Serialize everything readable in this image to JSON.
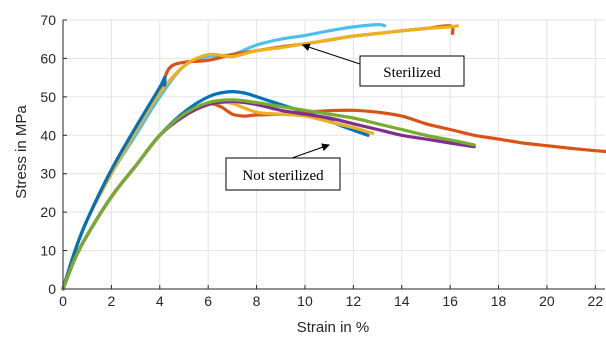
{
  "chart_data": {
    "type": "line",
    "title": "",
    "xlabel": "Strain in %",
    "ylabel": "Stress in MPa",
    "xlim": [
      0,
      22.4
    ],
    "ylim": [
      0,
      70
    ],
    "xticks": [
      0,
      2,
      4,
      6,
      8,
      10,
      12,
      14,
      16,
      18,
      20,
      22
    ],
    "yticks": [
      0,
      10,
      20,
      30,
      40,
      50,
      60,
      70
    ],
    "grid": true,
    "legend": "none",
    "annotations": [
      {
        "text": "Sterilized",
        "arrow_to": [
          9.9,
          63.5
        ]
      },
      {
        "text": "Not sterilized",
        "arrow_to": [
          11.0,
          37.5
        ]
      }
    ],
    "series": [
      {
        "group": "sterilized",
        "color": "#4DBEEE",
        "x": [
          0,
          0.5,
          1,
          2,
          3,
          4,
          5,
          6,
          7,
          8,
          9,
          10,
          11,
          12,
          13,
          13.3
        ],
        "y": [
          0,
          10,
          18,
          30,
          40,
          50,
          58,
          60.5,
          61,
          63.5,
          65,
          66,
          67.2,
          68.2,
          68.8,
          68.5
        ]
      },
      {
        "group": "sterilized",
        "color": "#D95319",
        "x": [
          0,
          0.5,
          1,
          2,
          3,
          4,
          4.4,
          5,
          6,
          7,
          8,
          9,
          10,
          11,
          12,
          13,
          14,
          15,
          16,
          16.1
        ],
        "y": [
          0,
          10,
          18,
          31,
          42,
          52,
          57.5,
          59,
          59.5,
          61,
          62,
          63,
          63.8,
          64.8,
          65.8,
          66.5,
          67.2,
          67.8,
          68.5,
          66.5
        ]
      },
      {
        "group": "sterilized",
        "color": "#EDB120",
        "x": [
          0,
          0.5,
          1,
          2,
          3,
          4,
          5,
          6,
          7,
          8,
          9,
          10,
          11,
          12,
          13,
          14,
          15,
          16,
          16.3
        ],
        "y": [
          0,
          10,
          18,
          30,
          41,
          51,
          58,
          61,
          60.5,
          62,
          62.8,
          63.8,
          64.8,
          65.8,
          66.5,
          67.2,
          67.8,
          68.2,
          68.5
        ]
      },
      {
        "group": "sterilized",
        "color": "#0072BD",
        "x": [
          0,
          0.5,
          1,
          2,
          3,
          4,
          4.2,
          4.2
        ],
        "y": [
          0,
          10,
          18,
          31,
          42,
          52.5,
          55,
          53
        ]
      },
      {
        "group": "not sterilized",
        "color": "#0072BD",
        "x": [
          0,
          0.5,
          1,
          2,
          3,
          4,
          5,
          6,
          6.8,
          7.5,
          8.5,
          9.5,
          10.5,
          11.5,
          12.6
        ],
        "y": [
          0,
          8,
          14,
          24,
          32,
          40,
          46,
          50,
          51.3,
          51,
          49,
          47,
          45,
          42.5,
          40
        ]
      },
      {
        "group": "not sterilized",
        "color": "#D95319",
        "x": [
          0,
          0.5,
          1,
          2,
          3,
          4,
          5,
          6,
          6.5,
          7,
          7.5,
          8,
          9,
          10,
          11,
          12,
          13,
          14,
          15,
          16,
          17,
          18,
          19,
          20,
          21,
          22,
          22.4
        ],
        "y": [
          0,
          8,
          14,
          24,
          32,
          40,
          45,
          48,
          47.5,
          45.5,
          45,
          45.3,
          45.5,
          46,
          46.4,
          46.5,
          46,
          45,
          43,
          41.5,
          40,
          39,
          38,
          37.3,
          36.6,
          36,
          35.8
        ]
      },
      {
        "group": "not sterilized",
        "color": "#EDB120",
        "x": [
          0,
          0.5,
          1,
          2,
          3,
          4,
          5,
          6,
          6.5,
          7,
          8,
          9,
          10,
          11,
          12,
          12.8
        ],
        "y": [
          0,
          8,
          14,
          24,
          32,
          40,
          45,
          48,
          48.5,
          48.3,
          46,
          45.5,
          45,
          43.5,
          42,
          40.5
        ]
      },
      {
        "group": "not sterilized",
        "color": "#7E2F8E",
        "x": [
          0,
          0.5,
          1,
          2,
          3,
          4,
          5,
          6,
          7,
          8,
          9,
          10,
          11,
          12,
          13,
          14,
          15,
          16,
          17
        ],
        "y": [
          0,
          8,
          14,
          24,
          32,
          40,
          45,
          48,
          48.8,
          48,
          46.5,
          45.5,
          44.5,
          43,
          41.5,
          40,
          39,
          38,
          37
        ]
      },
      {
        "group": "not sterilized",
        "color": "#77AC30",
        "x": [
          0,
          0.5,
          1,
          2,
          3,
          4,
          5,
          6,
          7,
          8,
          9,
          10,
          11,
          12,
          13,
          14,
          15,
          16,
          17
        ],
        "y": [
          0,
          8,
          14,
          24,
          32,
          40,
          45.5,
          48.5,
          49.2,
          48.5,
          47.5,
          46.5,
          45.5,
          44.5,
          43,
          41.5,
          40,
          38.8,
          37.5
        ]
      }
    ]
  }
}
